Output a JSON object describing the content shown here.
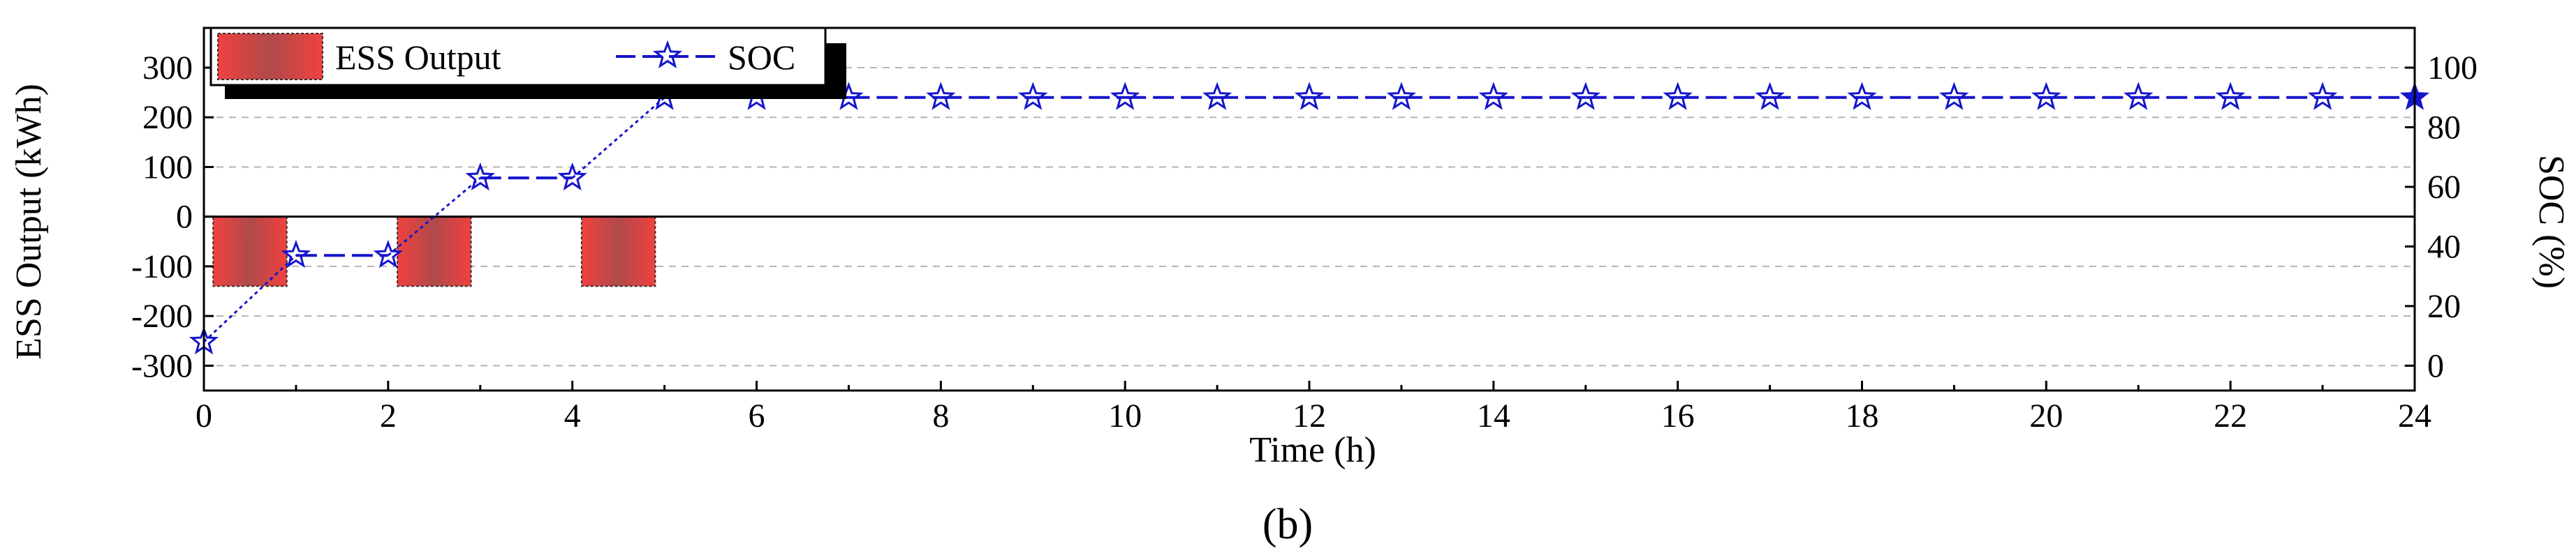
{
  "chart_data": {
    "type": "bar+line",
    "x": [
      0,
      1,
      2,
      3,
      4,
      5,
      6,
      7,
      8,
      9,
      10,
      11,
      12,
      13,
      14,
      15,
      16,
      17,
      18,
      19,
      20,
      21,
      22,
      23,
      24
    ],
    "xlabel": "Time (h)",
    "xlim": [
      0,
      24
    ],
    "xticks": [
      0,
      2,
      4,
      6,
      8,
      10,
      12,
      14,
      16,
      18,
      20,
      22,
      24
    ],
    "ylabel_left": "ESS Output (kWh)",
    "ylim_left": [
      -350,
      380
    ],
    "yticks_left": [
      -300,
      -200,
      -100,
      0,
      100,
      200,
      300
    ],
    "ylabel_right": "SOC (%)",
    "ylim_right": [
      0,
      100
    ],
    "yticks_right": [
      0,
      20,
      40,
      60,
      80,
      100
    ],
    "grid": "horizontal dashed",
    "caption": "(b)",
    "series": [
      {
        "name": "ESS Output",
        "kind": "bar",
        "axis": "left",
        "color": "#e8403f",
        "bars": [
          {
            "x_start": 0.1,
            "x_end": 0.9,
            "value": -140
          },
          {
            "x_start": 2.1,
            "x_end": 2.9,
            "value": -140
          },
          {
            "x_start": 4.1,
            "x_end": 4.9,
            "value": -140
          }
        ]
      },
      {
        "name": "SOC",
        "kind": "line",
        "axis": "right",
        "color": "#1515cc",
        "marker": "star",
        "values": [
          8,
          37,
          37,
          63,
          63,
          90,
          90,
          90,
          90,
          90,
          90,
          90,
          90,
          90,
          90,
          90,
          90,
          90,
          90,
          90,
          90,
          90,
          90,
          90,
          90
        ]
      }
    ],
    "legend": {
      "placement": "top-left"
    }
  }
}
